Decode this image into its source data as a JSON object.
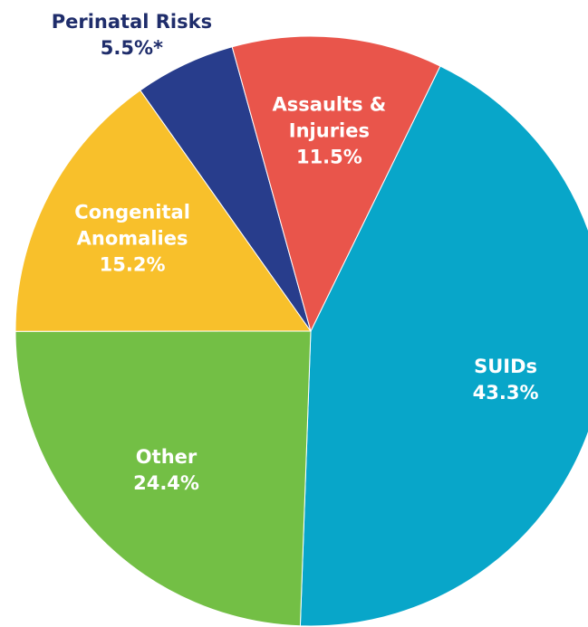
{
  "chart_data": {
    "type": "pie",
    "categories": [
      "SUIDs",
      "Other",
      "Congenital Anomalies",
      "Perinatal Risks",
      "Assaults & Injuries"
    ],
    "values": [
      43.3,
      24.4,
      15.2,
      5.5,
      11.5
    ],
    "value_labels": [
      "43.3%",
      "24.4%",
      "15.2%",
      "5.5%*",
      "11.5%"
    ],
    "colors": [
      "#08a6c9",
      "#73bf45",
      "#f8c02b",
      "#283d8c",
      "#e9554b"
    ]
  }
}
